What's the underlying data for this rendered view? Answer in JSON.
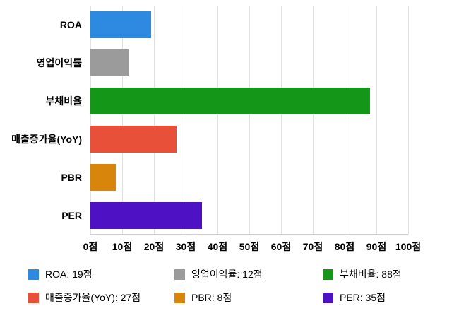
{
  "chart_data": {
    "type": "bar",
    "orientation": "horizontal",
    "title": "",
    "categories": [
      "ROA",
      "영업이익률",
      "부채비율",
      "매출증가율(YoY)",
      "PBR",
      "PER"
    ],
    "values": [
      19,
      12,
      88,
      27,
      8,
      35
    ],
    "unit": "점",
    "colors": [
      "#2e89e0",
      "#9b9b9b",
      "#149719",
      "#e8503a",
      "#d8860b",
      "#4e12c4"
    ],
    "xlim": [
      0,
      100
    ],
    "x_ticks": [
      0,
      10,
      20,
      30,
      40,
      50,
      60,
      70,
      80,
      90,
      100
    ],
    "x_tick_labels": [
      "0점",
      "10점",
      "20점",
      "30점",
      "40점",
      "50점",
      "60점",
      "70점",
      "80점",
      "90점",
      "100점"
    ],
    "grid": true,
    "legend_position": "bottom",
    "legend_items": [
      {
        "label": "ROA: 19점",
        "color": "#2e89e0"
      },
      {
        "label": "영업이익률: 12점",
        "color": "#9b9b9b"
      },
      {
        "label": "부채비율: 88점",
        "color": "#149719"
      },
      {
        "label": "매출증가율(YoY): 27점",
        "color": "#e8503a"
      },
      {
        "label": "PBR: 8점",
        "color": "#d8860b"
      },
      {
        "label": "PER: 35점",
        "color": "#4e12c4"
      }
    ]
  }
}
